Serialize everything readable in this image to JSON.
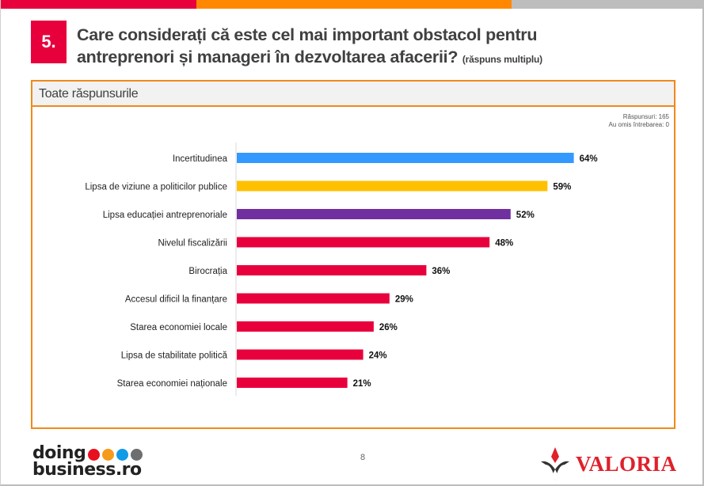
{
  "header": {
    "question_number": "5.",
    "title_line1": "Care considerați că este cel mai important obstacol pentru",
    "title_line2": "antreprenori și manageri în dezvoltarea afacerii?",
    "title_note": "(răspuns multiplu)",
    "top_bar_colors": [
      "#e8003d",
      "#ff8800",
      "#bdbdbd"
    ]
  },
  "panel": {
    "title": "Toate răspunsurile",
    "responses_label": "Răspunsuri: 165",
    "skipped_label": "Au omis întrebarea: 0"
  },
  "chart_data": {
    "type": "bar",
    "orientation": "horizontal",
    "title": "Toate răspunsurile",
    "xlabel": "",
    "ylabel": "",
    "xlim": [
      0,
      100
    ],
    "unit": "%",
    "grid": false,
    "categories": [
      "Incertitudinea",
      "Lipsa de viziune a politicilor publice",
      "Lipsa educației antreprenoriale",
      "Nivelul fiscalizării",
      "Birocrația",
      "Accesul dificil la finanțare",
      "Starea economiei locale",
      "Lipsa de stabilitate politică",
      "Starea economiei naționale"
    ],
    "values": [
      64,
      59,
      52,
      48,
      36,
      29,
      26,
      24,
      21
    ],
    "data_labels": [
      "64%",
      "59%",
      "52%",
      "48%",
      "36%",
      "29%",
      "26%",
      "24%",
      "21%"
    ],
    "colors": [
      "#3399ff",
      "#ffc000",
      "#7030a0",
      "#e8003d",
      "#e8003d",
      "#e8003d",
      "#e8003d",
      "#e8003d",
      "#e8003d"
    ]
  },
  "footer": {
    "left_logo_line1": "doing",
    "left_logo_line2": "business.ro",
    "left_logo_dot_colors": [
      "#e8101e",
      "#f59a1b",
      "#0f9be6",
      "#6d6e70"
    ],
    "page_number": "8",
    "right_logo": "VALORIA"
  }
}
